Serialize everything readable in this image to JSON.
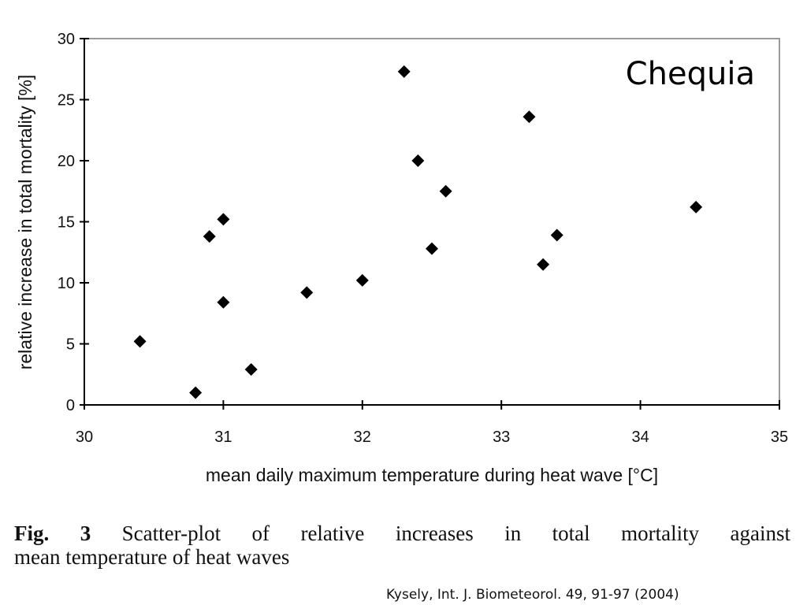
{
  "chart_data": {
    "type": "scatter",
    "label": "Chequia",
    "xlabel": "mean daily maximum temperature during heat wave [°C]",
    "ylabel": "relative increase in total mortality [%]",
    "xlim": [
      30,
      35
    ],
    "ylim": [
      0,
      30
    ],
    "xticks": [
      "30",
      "31",
      "32",
      "33",
      "34",
      "35"
    ],
    "yticks": [
      "0",
      "5",
      "10",
      "15",
      "20",
      "25",
      "30"
    ],
    "grid": false,
    "marker": "diamond",
    "marker_color": "#000000",
    "points": [
      {
        "x": 30.4,
        "y": 5.2
      },
      {
        "x": 30.8,
        "y": 1.0
      },
      {
        "x": 30.9,
        "y": 13.8
      },
      {
        "x": 31.0,
        "y": 15.2
      },
      {
        "x": 31.0,
        "y": 8.4
      },
      {
        "x": 31.2,
        "y": 2.9
      },
      {
        "x": 31.6,
        "y": 9.2
      },
      {
        "x": 32.0,
        "y": 10.2
      },
      {
        "x": 32.3,
        "y": 27.3
      },
      {
        "x": 32.4,
        "y": 20.0
      },
      {
        "x": 32.5,
        "y": 12.8
      },
      {
        "x": 32.6,
        "y": 17.5
      },
      {
        "x": 33.2,
        "y": 23.6
      },
      {
        "x": 33.3,
        "y": 11.5
      },
      {
        "x": 33.4,
        "y": 13.9
      },
      {
        "x": 34.4,
        "y": 16.2
      }
    ]
  },
  "caption": {
    "fig_label": "Fig. 3",
    "line1": "Scatter-plot of relative increases in total mortality against",
    "line2": "mean temperature of heat waves"
  },
  "citation": "Kysely, Int. J. Biometeorol. 49, 91-97 (2004)"
}
